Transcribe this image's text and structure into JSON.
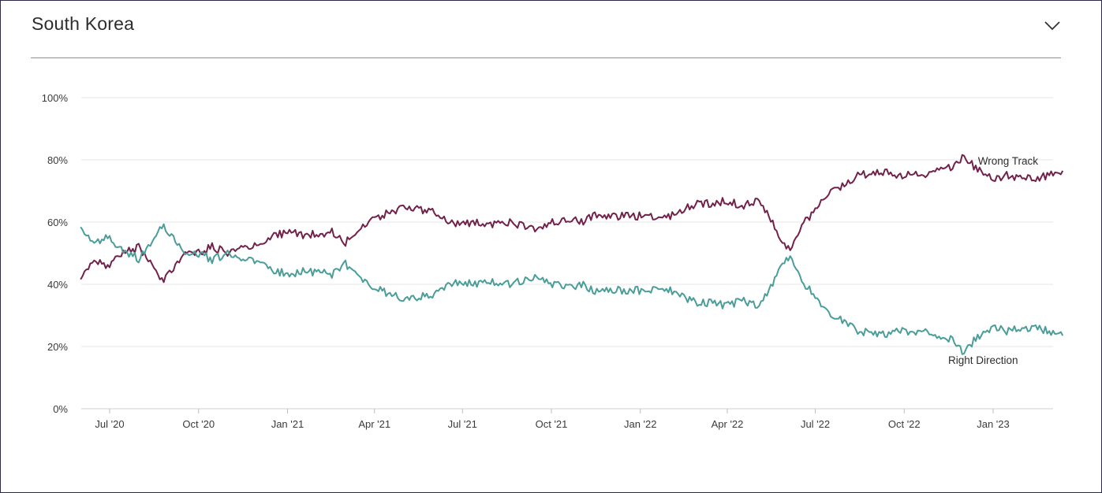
{
  "header": {
    "title": "South Korea",
    "toggle_icon": "chevron-down-icon"
  },
  "chart_data": {
    "type": "line",
    "xlabel": "",
    "ylabel": "",
    "ylim": [
      0,
      100
    ],
    "y_ticks": [
      "0%",
      "20%",
      "40%",
      "60%",
      "80%",
      "100%"
    ],
    "x_ticks": [
      "Jul '20",
      "Oct '20",
      "Jan '21",
      "Apr '21",
      "Jul '21",
      "Oct '21",
      "Jan '22",
      "Apr '22",
      "Jul '22",
      "Oct '22",
      "Jan '23"
    ],
    "grid": true,
    "series": [
      {
        "name": "Wrong Track",
        "color": "#72224a",
        "points": [
          [
            "2020-06-01",
            42
          ],
          [
            "2020-06-15",
            47
          ],
          [
            "2020-06-30",
            46
          ],
          [
            "2020-07-15",
            50
          ],
          [
            "2020-08-01",
            52
          ],
          [
            "2020-08-15",
            45
          ],
          [
            "2020-08-25",
            41
          ],
          [
            "2020-09-05",
            45
          ],
          [
            "2020-09-15",
            50
          ],
          [
            "2020-10-01",
            50
          ],
          [
            "2020-10-15",
            52
          ],
          [
            "2020-11-01",
            50
          ],
          [
            "2020-11-15",
            52
          ],
          [
            "2020-12-01",
            52
          ],
          [
            "2020-12-15",
            55
          ],
          [
            "2021-01-01",
            57
          ],
          [
            "2021-01-15",
            56
          ],
          [
            "2021-02-01",
            56
          ],
          [
            "2021-02-15",
            57
          ],
          [
            "2021-03-01",
            53
          ],
          [
            "2021-03-15",
            58
          ],
          [
            "2021-04-01",
            61
          ],
          [
            "2021-04-15",
            63
          ],
          [
            "2021-05-01",
            65
          ],
          [
            "2021-05-15",
            64
          ],
          [
            "2021-06-01",
            63
          ],
          [
            "2021-06-15",
            60
          ],
          [
            "2021-07-01",
            59
          ],
          [
            "2021-07-15",
            60
          ],
          [
            "2021-08-01",
            59
          ],
          [
            "2021-08-15",
            60
          ],
          [
            "2021-09-01",
            59
          ],
          [
            "2021-09-15",
            58
          ],
          [
            "2021-10-01",
            60
          ],
          [
            "2021-10-15",
            61
          ],
          [
            "2021-11-01",
            60
          ],
          [
            "2021-11-15",
            62
          ],
          [
            "2021-12-01",
            62
          ],
          [
            "2021-12-15",
            62
          ],
          [
            "2022-01-01",
            62
          ],
          [
            "2022-01-15",
            62
          ],
          [
            "2022-02-01",
            62
          ],
          [
            "2022-02-15",
            64
          ],
          [
            "2022-03-01",
            66
          ],
          [
            "2022-03-15",
            66
          ],
          [
            "2022-04-01",
            67
          ],
          [
            "2022-04-15",
            65
          ],
          [
            "2022-05-01",
            67
          ],
          [
            "2022-05-15",
            62
          ],
          [
            "2022-05-25",
            55
          ],
          [
            "2022-06-05",
            51
          ],
          [
            "2022-06-15",
            58
          ],
          [
            "2022-07-01",
            64
          ],
          [
            "2022-07-15",
            70
          ],
          [
            "2022-08-01",
            72
          ],
          [
            "2022-08-15",
            75
          ],
          [
            "2022-09-01",
            76
          ],
          [
            "2022-09-15",
            76
          ],
          [
            "2022-10-01",
            75
          ],
          [
            "2022-10-15",
            75
          ],
          [
            "2022-11-01",
            76
          ],
          [
            "2022-11-20",
            78
          ],
          [
            "2022-12-01",
            81
          ],
          [
            "2022-12-15",
            77
          ],
          [
            "2023-01-01",
            74
          ],
          [
            "2023-01-15",
            75
          ],
          [
            "2023-02-01",
            74
          ],
          [
            "2023-02-15",
            74
          ],
          [
            "2023-03-01",
            75
          ],
          [
            "2023-03-15",
            76
          ]
        ]
      },
      {
        "name": "Right Direction",
        "color": "#4a9d98",
        "points": [
          [
            "2020-06-01",
            58
          ],
          [
            "2020-06-15",
            54
          ],
          [
            "2020-06-30",
            55
          ],
          [
            "2020-07-15",
            51
          ],
          [
            "2020-08-01",
            48
          ],
          [
            "2020-08-15",
            55
          ],
          [
            "2020-08-25",
            59
          ],
          [
            "2020-09-05",
            55
          ],
          [
            "2020-09-15",
            50
          ],
          [
            "2020-10-01",
            50
          ],
          [
            "2020-10-15",
            48
          ],
          [
            "2020-11-01",
            50
          ],
          [
            "2020-11-15",
            48
          ],
          [
            "2020-12-01",
            48
          ],
          [
            "2020-12-15",
            45
          ],
          [
            "2021-01-01",
            43
          ],
          [
            "2021-01-15",
            44
          ],
          [
            "2021-02-01",
            44
          ],
          [
            "2021-02-15",
            43
          ],
          [
            "2021-03-01",
            47
          ],
          [
            "2021-03-15",
            42
          ],
          [
            "2021-04-01",
            39
          ],
          [
            "2021-04-15",
            37
          ],
          [
            "2021-05-01",
            35
          ],
          [
            "2021-05-15",
            36
          ],
          [
            "2021-06-01",
            37
          ],
          [
            "2021-06-15",
            40
          ],
          [
            "2021-07-01",
            41
          ],
          [
            "2021-07-15",
            40
          ],
          [
            "2021-08-01",
            41
          ],
          [
            "2021-08-15",
            40
          ],
          [
            "2021-09-01",
            41
          ],
          [
            "2021-09-15",
            42
          ],
          [
            "2021-10-01",
            40
          ],
          [
            "2021-10-15",
            39
          ],
          [
            "2021-11-01",
            40
          ],
          [
            "2021-11-15",
            38
          ],
          [
            "2021-12-01",
            38
          ],
          [
            "2021-12-15",
            38
          ],
          [
            "2022-01-01",
            38
          ],
          [
            "2022-01-15",
            38
          ],
          [
            "2022-02-01",
            38
          ],
          [
            "2022-02-15",
            36
          ],
          [
            "2022-03-01",
            34
          ],
          [
            "2022-03-15",
            34
          ],
          [
            "2022-04-01",
            33
          ],
          [
            "2022-04-15",
            35
          ],
          [
            "2022-05-01",
            33
          ],
          [
            "2022-05-15",
            38
          ],
          [
            "2022-05-25",
            45
          ],
          [
            "2022-06-05",
            49
          ],
          [
            "2022-06-15",
            42
          ],
          [
            "2022-07-01",
            36
          ],
          [
            "2022-07-15",
            30
          ],
          [
            "2022-08-01",
            28
          ],
          [
            "2022-08-15",
            25
          ],
          [
            "2022-09-01",
            24
          ],
          [
            "2022-09-15",
            24
          ],
          [
            "2022-10-01",
            25
          ],
          [
            "2022-10-15",
            25
          ],
          [
            "2022-11-01",
            24
          ],
          [
            "2022-11-20",
            22
          ],
          [
            "2022-12-01",
            18
          ],
          [
            "2022-12-15",
            23
          ],
          [
            "2023-01-01",
            26
          ],
          [
            "2023-01-15",
            25
          ],
          [
            "2023-02-01",
            26
          ],
          [
            "2023-02-15",
            26
          ],
          [
            "2023-03-01",
            25
          ],
          [
            "2023-03-15",
            24
          ]
        ]
      }
    ]
  }
}
